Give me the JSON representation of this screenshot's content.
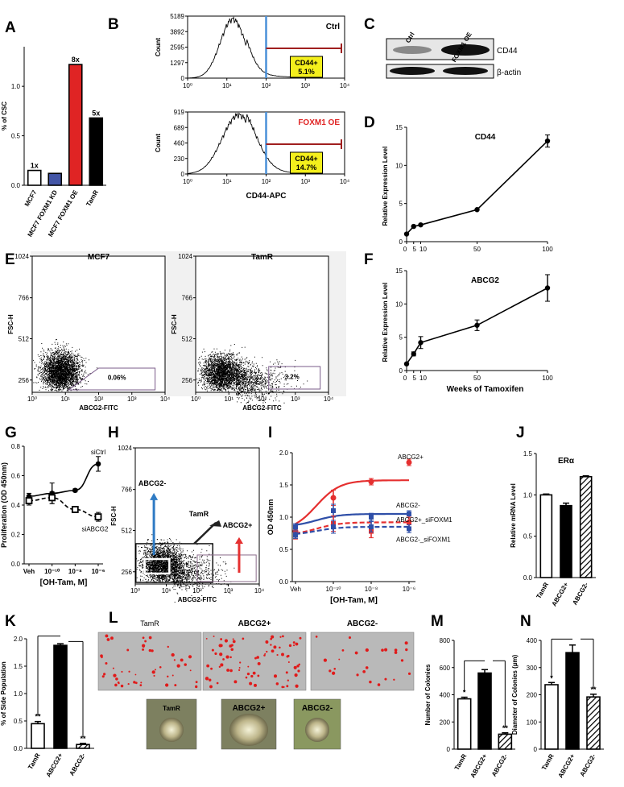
{
  "panel_letters": [
    "A",
    "B",
    "C",
    "D",
    "E",
    "F",
    "G",
    "H",
    "I",
    "J",
    "K",
    "L",
    "M",
    "N"
  ],
  "chart_data": [
    {
      "id": "A",
      "type": "bar",
      "ylabel": "% of CSC",
      "categories": [
        "MCF7",
        "MCF7 FOXM1 KD",
        "MCF7 FOXM1 OE",
        "TamR"
      ],
      "values": [
        0.15,
        0.12,
        1.22,
        0.68
      ],
      "colors": [
        "#ffffff",
        "#4355a6",
        "#e02424",
        "#000000"
      ],
      "annotations": [
        "1x",
        "",
        "8x",
        "5x"
      ],
      "yticks": [
        "0.0",
        "0.5",
        "1.0"
      ],
      "ylim": [
        0,
        1.4
      ]
    },
    {
      "id": "B",
      "type": "histogram",
      "xlabel": "CD44-APC",
      "xticks": [
        "10⁰",
        "10¹",
        "10²",
        "10³",
        "10⁴"
      ],
      "panels": [
        {
          "title": "Ctrl",
          "ylabel": "Count",
          "yticks": [
            "0",
            "1297",
            "2595",
            "3892",
            "5189"
          ],
          "gate": "CD44+ 5.1%",
          "gate_line1": "CD44+",
          "gate_line2": "5.1%"
        },
        {
          "title": "FOXM1 OE",
          "ylabel": "Count",
          "yticks": [
            "0",
            "230",
            "460",
            "689",
            "919"
          ],
          "gate": "CD44+ 14.7%",
          "gate_line1": "CD44+",
          "gate_line2": "14.7%"
        }
      ]
    },
    {
      "id": "C",
      "type": "western_blot",
      "lanes": [
        "Ctrl",
        "FOXM1 OE"
      ],
      "bands": [
        "CD44",
        "β-actin"
      ]
    },
    {
      "id": "D",
      "type": "line",
      "title": "CD44",
      "ylabel": "Relative Expression Level",
      "x": [
        0,
        5,
        10,
        50,
        100
      ],
      "y": [
        1.0,
        2.0,
        2.2,
        4.2,
        13.2
      ],
      "err": [
        0,
        0,
        0,
        0,
        0.8
      ],
      "xticks": [
        "0",
        "5",
        "10",
        "50",
        "100"
      ],
      "yticks": [
        "0",
        "5",
        "10",
        "15"
      ],
      "ylim": [
        0,
        15
      ]
    },
    {
      "id": "E",
      "type": "scatter_flow",
      "xlabel": "ABCG2-FITC",
      "ylabel": "FSC-H",
      "xticks": [
        "10⁰",
        "10¹",
        "10²",
        "10³",
        "10⁴"
      ],
      "yticks": [
        "256",
        "512",
        "766",
        "1024"
      ],
      "panels": [
        {
          "title": "MCF7",
          "gate": "0.06%"
        },
        {
          "title": "TamR",
          "gate": "3.2%"
        }
      ]
    },
    {
      "id": "F",
      "type": "line",
      "title": "ABCG2",
      "ylabel": "Relative Expression Level",
      "xlabel": "Weeks of Tamoxifen",
      "x": [
        0,
        5,
        10,
        50,
        100
      ],
      "y": [
        1.0,
        2.5,
        4.2,
        6.8,
        12.4
      ],
      "err": [
        0,
        0.3,
        0.9,
        0.8,
        2.0
      ],
      "xticks": [
        "0",
        "5",
        "10",
        "50",
        "100"
      ],
      "yticks": [
        "0",
        "5",
        "10",
        "15"
      ],
      "ylim": [
        0,
        15
      ]
    },
    {
      "id": "G",
      "type": "line",
      "ylabel": "Proliferation (OD 450nm)",
      "xlabel": "[OH-Tam, M]",
      "xticks": [
        "Veh",
        "10⁻¹⁰",
        "10⁻⁸",
        "10⁻⁶"
      ],
      "yticks": [
        "0.0",
        "0.2",
        "0.4",
        "0.6",
        "0.8"
      ],
      "ylim": [
        0,
        0.8
      ],
      "series": [
        {
          "name": "siCtrl",
          "y": [
            0.46,
            0.48,
            0.5,
            0.68
          ],
          "err": [
            0.02,
            0.07,
            0.01,
            0.05
          ]
        },
        {
          "name": "siABCG2",
          "y": [
            0.43,
            0.45,
            0.37,
            0.32
          ],
          "err": [
            0.03,
            0.04,
            0.02,
            0.03
          ]
        }
      ]
    },
    {
      "id": "H",
      "type": "scatter_flow",
      "xlabel": "ABCG2-FITC",
      "ylabel": "FSC-H",
      "xticks": [
        "10⁰",
        "10¹",
        "10²",
        "10³",
        "10⁴"
      ],
      "yticks": [
        "256",
        "512",
        "766",
        "1024"
      ],
      "labels": [
        "ABCG2-",
        "TamR",
        "ABCG2+"
      ]
    },
    {
      "id": "I",
      "type": "line",
      "ylabel": "OD 450nm",
      "xlabel": "[OH-Tam, M]",
      "xticks": [
        "Veh",
        "10⁻¹⁰",
        "10⁻⁸",
        "10⁻⁶"
      ],
      "yticks": [
        "0.0",
        "0.5",
        "1.0",
        "1.5",
        "2.0"
      ],
      "ylim": [
        0,
        2.0
      ],
      "series": [
        {
          "name": "ABCG2+",
          "y": [
            0.78,
            1.3,
            1.55,
            1.85
          ],
          "err": [
            0.08,
            0.12,
            0.05,
            0.05
          ]
        },
        {
          "name": "ABCG2-",
          "y": [
            0.85,
            1.1,
            1.0,
            1.05
          ],
          "err": [
            0.05,
            0.1,
            0.06,
            0.05
          ]
        },
        {
          "name": "ABCG2+_siFOXM1",
          "y": [
            0.72,
            0.9,
            0.78,
            0.92
          ],
          "err": [
            0.06,
            0.12,
            0.1,
            0.08
          ]
        },
        {
          "name": "ABCG2-_siFOXM1",
          "y": [
            0.72,
            0.85,
            0.85,
            0.82
          ],
          "err": [
            0.05,
            0.1,
            0.08,
            0.06
          ]
        }
      ]
    },
    {
      "id": "J",
      "type": "bar",
      "title": "ERα",
      "ylabel": "Relative mRNA Level",
      "categories": [
        "TamR",
        "ABCG2+",
        "ABCG2-"
      ],
      "values": [
        1.0,
        0.87,
        1.22
      ],
      "err": [
        0.01,
        0.03,
        0.01
      ],
      "fills": [
        "white",
        "black",
        "hatch"
      ],
      "yticks": [
        "0.0",
        "0.5",
        "1.0",
        "1.5"
      ],
      "ylim": [
        0,
        1.5
      ]
    },
    {
      "id": "K",
      "type": "bar",
      "ylabel": "% of Side Population",
      "categories": [
        "TamR",
        "ABCG2+",
        "ABCG2-"
      ],
      "values": [
        0.45,
        1.88,
        0.07
      ],
      "err": [
        0.04,
        0.03,
        0.02
      ],
      "fills": [
        "white",
        "black",
        "hatch"
      ],
      "annotations": [
        "**",
        "",
        "**"
      ],
      "yticks": [
        "0.0",
        "0.5",
        "1.0",
        "1.5",
        "2.0"
      ],
      "ylim": [
        0,
        2.0
      ]
    },
    {
      "id": "L",
      "type": "images",
      "labels": [
        "TamR",
        "ABCG2+",
        "ABCG2-"
      ]
    },
    {
      "id": "M",
      "type": "bar",
      "ylabel": "Number of Colonies",
      "categories": [
        "TamR",
        "ABCG2+",
        "ABCG2-"
      ],
      "values": [
        370,
        560,
        110
      ],
      "err": [
        12,
        25,
        10
      ],
      "fills": [
        "white",
        "black",
        "hatch"
      ],
      "annotations": [
        "*",
        "",
        "**"
      ],
      "yticks": [
        "0",
        "200",
        "400",
        "600",
        "800"
      ],
      "ylim": [
        0,
        800
      ]
    },
    {
      "id": "N",
      "type": "bar",
      "ylabel": "Diameter of Colonies (µm)",
      "categories": [
        "TamR",
        "ABCG2+",
        "ABCG2-"
      ],
      "values": [
        237,
        355,
        192
      ],
      "err": [
        8,
        28,
        10
      ],
      "fills": [
        "white",
        "black",
        "hatch"
      ],
      "annotations": [
        "*",
        "",
        "**"
      ],
      "yticks": [
        "0",
        "100",
        "200",
        "300",
        "400"
      ],
      "ylim": [
        0,
        400
      ]
    }
  ]
}
